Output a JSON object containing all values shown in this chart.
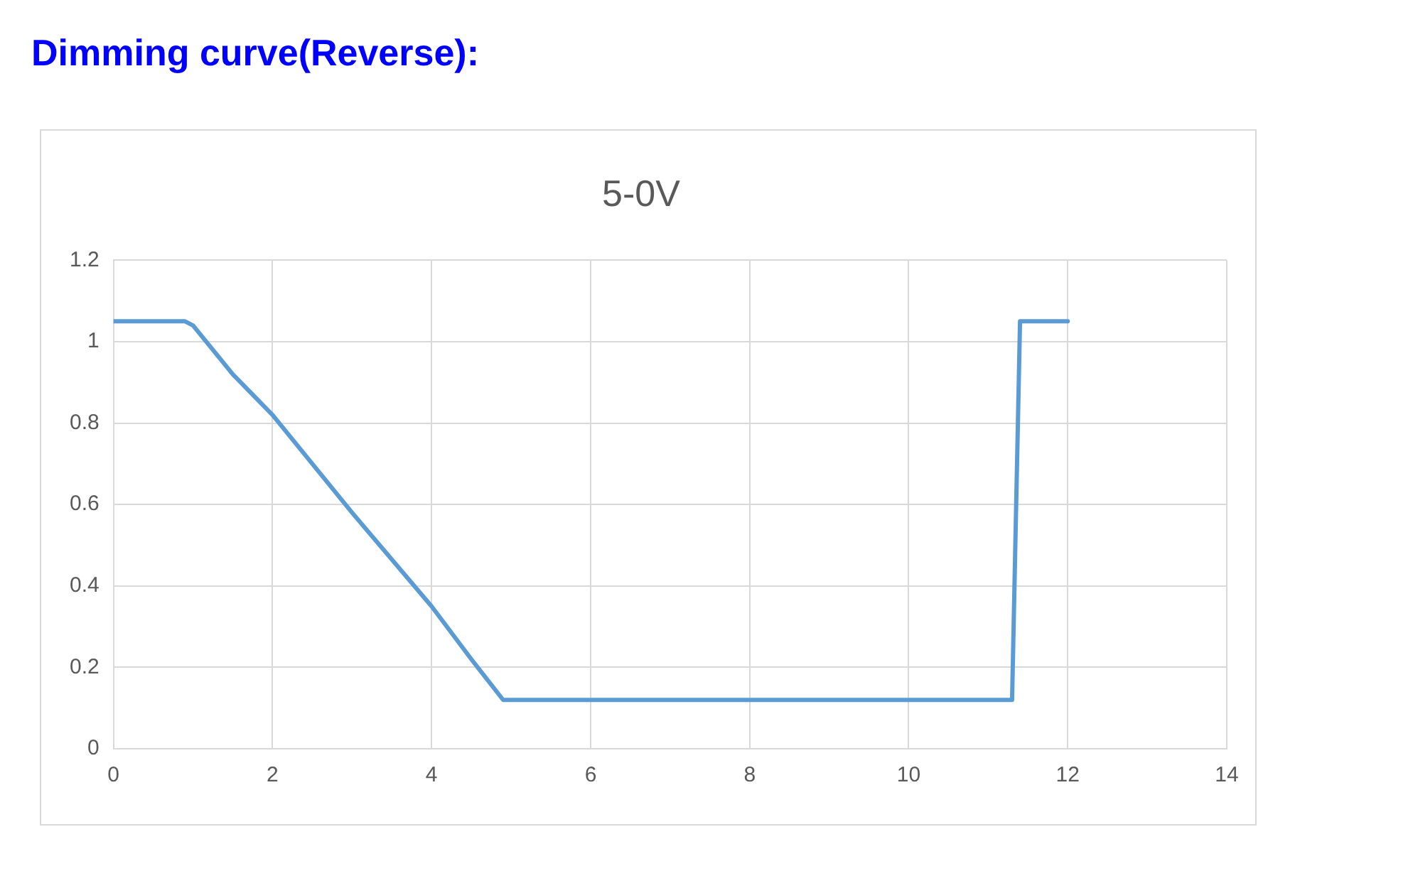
{
  "chart_data": {
    "type": "line",
    "title": "Dimming curve(Reverse):",
    "subtitle": "5-0V",
    "x": [
      0,
      0.9,
      1,
      1.5,
      2,
      3,
      4,
      4.5,
      4.7,
      4.9,
      11.3,
      11.4,
      12
    ],
    "series": [
      {
        "color": "#5b9bd5",
        "values": [
          1.05,
          1.05,
          1.04,
          0.92,
          0.82,
          0.58,
          0.35,
          0.22,
          0.17,
          0.12,
          0.12,
          1.05,
          1.05
        ]
      }
    ],
    "xlim": [
      0,
      14
    ],
    "xticks": [
      0,
      2,
      4,
      6,
      8,
      10,
      12,
      14
    ],
    "ylim": [
      0,
      1.2
    ],
    "yticks": [
      0,
      0.2,
      0.4,
      0.6,
      0.8,
      1,
      1.2
    ],
    "grid": true,
    "legend": false,
    "marker": "none",
    "line_style": "solid"
  }
}
